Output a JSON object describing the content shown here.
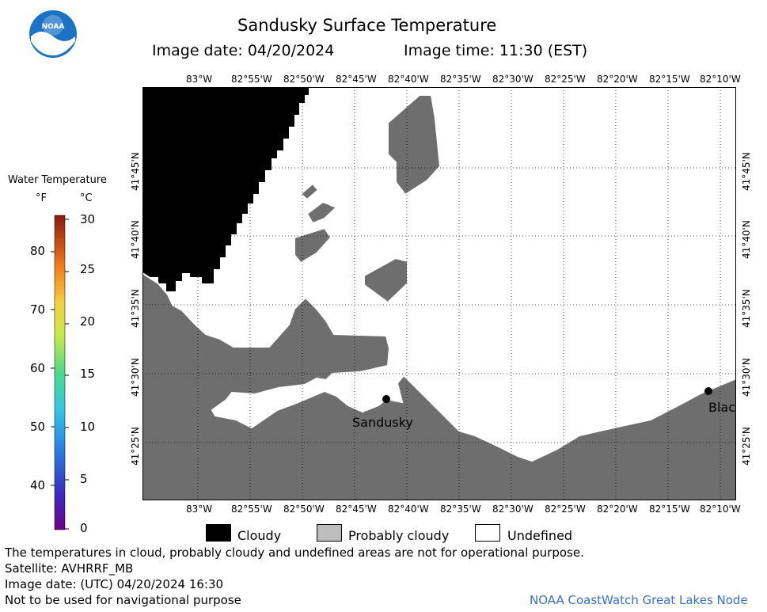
{
  "header": {
    "title": "Sandusky Surface Temperature",
    "image_date": "Image date: 04/20/2024",
    "image_time": "Image time: 11:30 (EST)"
  },
  "logo": {
    "text": "NOAA",
    "icon": "noaa-logo"
  },
  "colorbar": {
    "title": "Water Temperature",
    "unit_f": "°F",
    "unit_c": "°C",
    "f_labels": [
      "80",
      "70",
      "60",
      "50",
      "40"
    ],
    "c_labels": [
      "30",
      "25",
      "20",
      "15",
      "10",
      "5",
      "0"
    ]
  },
  "map": {
    "lon_labels": [
      "83°W",
      "82°55'W",
      "82°50'W",
      "82°45'W",
      "82°40'W",
      "82°35'W",
      "82°30'W",
      "82°25'W",
      "82°20'W",
      "82°15'W",
      "82°10'W"
    ],
    "lat_labels": [
      "41°45'N",
      "41°40'N",
      "41°35'N",
      "41°30'N",
      "41°25'N"
    ],
    "places": [
      {
        "name": "Sandusky"
      },
      {
        "name": "Blac"
      }
    ],
    "colors": {
      "cloudy": "#000000",
      "probably_cloudy": "#6e6e6e",
      "undefined": "#ffffff"
    }
  },
  "legend": {
    "cloudy": "Cloudy",
    "probably_cloudy": "Probably cloudy",
    "undefined": "Undefined"
  },
  "footer": {
    "disclaimer": "The temperatures in cloud, probably cloudy and undefined areas are not for operational purpose.",
    "satellite": "Satellite: AVHRRF_MB",
    "utc_date": "Image date: (UTC) 04/20/2024  16:30",
    "navigation": "Not to be used for navigational purpose",
    "credit": "NOAA CoastWatch Great Lakes Node"
  }
}
